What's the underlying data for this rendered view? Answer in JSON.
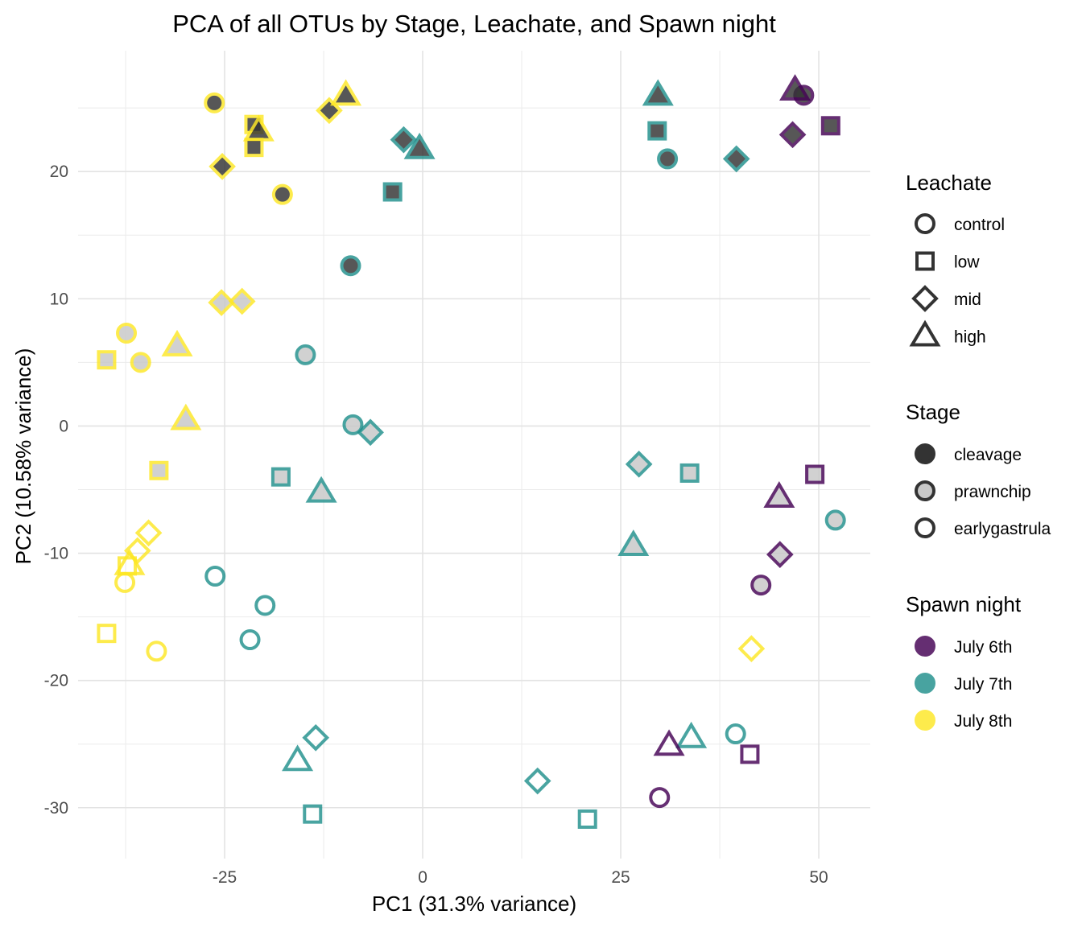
{
  "chart_data": {
    "type": "scatter",
    "title": "PCA of all OTUs by Stage, Leachate, and Spawn night",
    "xlabel": "PC1 (31.3% variance)",
    "ylabel": "PC2 (10.58% variance)",
    "xlim": [
      -43.5,
      56.5
    ],
    "ylim": [
      -34,
      29.5
    ],
    "x_ticks": [
      -25,
      0,
      25,
      50
    ],
    "x_tick_labels": [
      "-25",
      "0",
      "25",
      "50"
    ],
    "y_ticks": [
      -30,
      -20,
      -10,
      0,
      10,
      20
    ],
    "y_tick_labels": [
      "-30",
      "-20",
      "-10",
      "0",
      "10",
      "20"
    ],
    "grid": true,
    "legend_position": "right",
    "colors": {
      "July 6th": "#440154",
      "July 7th": "#21908C",
      "July 8th": "#FDE725"
    },
    "stage_fills": {
      "cleavage": "#333333",
      "prawnchip": "#C8C8C8",
      "earlygastrula": "none"
    },
    "legends": [
      {
        "title": "Leachate",
        "kind": "shape",
        "items": [
          {
            "label": "control",
            "value": "circle"
          },
          {
            "label": "low",
            "value": "square"
          },
          {
            "label": "mid",
            "value": "diamond"
          },
          {
            "label": "high",
            "value": "triangle"
          }
        ]
      },
      {
        "title": "Stage",
        "kind": "fill",
        "items": [
          {
            "label": "cleavage",
            "value": "cleavage"
          },
          {
            "label": "prawnchip",
            "value": "prawnchip"
          },
          {
            "label": "earlygastrula",
            "value": "earlygastrula"
          }
        ]
      },
      {
        "title": "Spawn night",
        "kind": "color",
        "items": [
          {
            "label": "July 6th",
            "value": "July 6th"
          },
          {
            "label": "July 7th",
            "value": "July 7th"
          },
          {
            "label": "July 8th",
            "value": "July 8th"
          }
        ]
      }
    ],
    "points": [
      {
        "x": 48.1,
        "y": 26.0,
        "leachate": "control",
        "stage": "cleavage",
        "night": "July 6th"
      },
      {
        "x": 47.0,
        "y": 26.4,
        "leachate": "high",
        "stage": "cleavage",
        "night": "July 6th"
      },
      {
        "x": 46.7,
        "y": 22.9,
        "leachate": "mid",
        "stage": "cleavage",
        "night": "July 6th"
      },
      {
        "x": 51.5,
        "y": 23.6,
        "leachate": "low",
        "stage": "cleavage",
        "night": "July 6th"
      },
      {
        "x": 29.7,
        "y": 26.0,
        "leachate": "high",
        "stage": "cleavage",
        "night": "July 7th"
      },
      {
        "x": 29.6,
        "y": 23.2,
        "leachate": "low",
        "stage": "cleavage",
        "night": "July 7th"
      },
      {
        "x": 30.9,
        "y": 21.0,
        "leachate": "control",
        "stage": "cleavage",
        "night": "July 7th"
      },
      {
        "x": 39.6,
        "y": 21.0,
        "leachate": "mid",
        "stage": "cleavage",
        "night": "July 7th"
      },
      {
        "x": -26.3,
        "y": 25.4,
        "leachate": "control",
        "stage": "cleavage",
        "night": "July 8th"
      },
      {
        "x": -21.3,
        "y": 23.7,
        "leachate": "low",
        "stage": "cleavage",
        "night": "July 8th"
      },
      {
        "x": -20.7,
        "y": 23.2,
        "leachate": "high",
        "stage": "cleavage",
        "night": "July 8th"
      },
      {
        "x": -21.3,
        "y": 21.9,
        "leachate": "low",
        "stage": "cleavage",
        "night": "July 8th"
      },
      {
        "x": -11.8,
        "y": 24.8,
        "leachate": "mid",
        "stage": "cleavage",
        "night": "July 8th"
      },
      {
        "x": -9.7,
        "y": 26.0,
        "leachate": "high",
        "stage": "cleavage",
        "night": "July 8th"
      },
      {
        "x": -25.3,
        "y": 20.4,
        "leachate": "mid",
        "stage": "cleavage",
        "night": "July 8th"
      },
      {
        "x": -17.7,
        "y": 18.2,
        "leachate": "control",
        "stage": "cleavage",
        "night": "July 8th"
      },
      {
        "x": -2.4,
        "y": 22.5,
        "leachate": "mid",
        "stage": "cleavage",
        "night": "July 7th"
      },
      {
        "x": -0.4,
        "y": 21.8,
        "leachate": "high",
        "stage": "cleavage",
        "night": "July 7th"
      },
      {
        "x": -3.8,
        "y": 18.4,
        "leachate": "low",
        "stage": "cleavage",
        "night": "July 7th"
      },
      {
        "x": -9.1,
        "y": 12.6,
        "leachate": "control",
        "stage": "cleavage",
        "night": "July 7th"
      },
      {
        "x": -25.4,
        "y": 9.7,
        "leachate": "mid",
        "stage": "prawnchip",
        "night": "July 8th"
      },
      {
        "x": -22.8,
        "y": 9.8,
        "leachate": "mid",
        "stage": "prawnchip",
        "night": "July 8th"
      },
      {
        "x": -37.4,
        "y": 7.3,
        "leachate": "control",
        "stage": "prawnchip",
        "night": "July 8th"
      },
      {
        "x": -39.9,
        "y": 5.2,
        "leachate": "low",
        "stage": "prawnchip",
        "night": "July 8th"
      },
      {
        "x": -35.6,
        "y": 5.0,
        "leachate": "control",
        "stage": "prawnchip",
        "night": "July 8th"
      },
      {
        "x": -31.0,
        "y": 6.3,
        "leachate": "high",
        "stage": "prawnchip",
        "night": "July 8th"
      },
      {
        "x": -29.9,
        "y": 0.5,
        "leachate": "high",
        "stage": "prawnchip",
        "night": "July 8th"
      },
      {
        "x": -33.3,
        "y": -3.5,
        "leachate": "low",
        "stage": "prawnchip",
        "night": "July 8th"
      },
      {
        "x": -14.8,
        "y": 5.6,
        "leachate": "control",
        "stage": "prawnchip",
        "night": "July 7th"
      },
      {
        "x": -8.8,
        "y": 0.1,
        "leachate": "control",
        "stage": "prawnchip",
        "night": "July 7th"
      },
      {
        "x": -6.6,
        "y": -0.5,
        "leachate": "mid",
        "stage": "prawnchip",
        "night": "July 7th"
      },
      {
        "x": -17.9,
        "y": -4.0,
        "leachate": "low",
        "stage": "prawnchip",
        "night": "July 7th"
      },
      {
        "x": -12.8,
        "y": -5.2,
        "leachate": "high",
        "stage": "prawnchip",
        "night": "July 7th"
      },
      {
        "x": 27.3,
        "y": -3.0,
        "leachate": "mid",
        "stage": "prawnchip",
        "night": "July 7th"
      },
      {
        "x": 33.7,
        "y": -3.7,
        "leachate": "low",
        "stage": "prawnchip",
        "night": "July 7th"
      },
      {
        "x": 26.6,
        "y": -9.4,
        "leachate": "high",
        "stage": "prawnchip",
        "night": "July 7th"
      },
      {
        "x": 52.1,
        "y": -7.4,
        "leachate": "control",
        "stage": "prawnchip",
        "night": "July 7th"
      },
      {
        "x": 49.5,
        "y": -3.8,
        "leachate": "low",
        "stage": "prawnchip",
        "night": "July 6th"
      },
      {
        "x": 45.0,
        "y": -5.6,
        "leachate": "high",
        "stage": "prawnchip",
        "night": "July 6th"
      },
      {
        "x": 45.1,
        "y": -10.1,
        "leachate": "mid",
        "stage": "prawnchip",
        "night": "July 6th"
      },
      {
        "x": 42.7,
        "y": -12.5,
        "leachate": "control",
        "stage": "prawnchip",
        "night": "July 6th"
      },
      {
        "x": -34.6,
        "y": -8.4,
        "leachate": "mid",
        "stage": "earlygastrula",
        "night": "July 8th"
      },
      {
        "x": -36.0,
        "y": -9.8,
        "leachate": "mid",
        "stage": "earlygastrula",
        "night": "July 8th"
      },
      {
        "x": -37.3,
        "y": -11.0,
        "leachate": "low",
        "stage": "earlygastrula",
        "night": "July 8th"
      },
      {
        "x": -37.0,
        "y": -10.9,
        "leachate": "high",
        "stage": "earlygastrula",
        "night": "July 8th"
      },
      {
        "x": -37.6,
        "y": -12.3,
        "leachate": "control",
        "stage": "earlygastrula",
        "night": "July 8th"
      },
      {
        "x": -39.9,
        "y": -16.3,
        "leachate": "low",
        "stage": "earlygastrula",
        "night": "July 8th"
      },
      {
        "x": -33.6,
        "y": -17.7,
        "leachate": "control",
        "stage": "earlygastrula",
        "night": "July 8th"
      },
      {
        "x": 41.5,
        "y": -17.5,
        "leachate": "mid",
        "stage": "earlygastrula",
        "night": "July 8th"
      },
      {
        "x": -26.2,
        "y": -11.8,
        "leachate": "control",
        "stage": "earlygastrula",
        "night": "July 7th"
      },
      {
        "x": -19.9,
        "y": -14.1,
        "leachate": "control",
        "stage": "earlygastrula",
        "night": "July 7th"
      },
      {
        "x": -21.8,
        "y": -16.8,
        "leachate": "control",
        "stage": "earlygastrula",
        "night": "July 7th"
      },
      {
        "x": -13.5,
        "y": -24.5,
        "leachate": "mid",
        "stage": "earlygastrula",
        "night": "July 7th"
      },
      {
        "x": -15.8,
        "y": -26.3,
        "leachate": "high",
        "stage": "earlygastrula",
        "night": "July 7th"
      },
      {
        "x": -13.9,
        "y": -30.5,
        "leachate": "low",
        "stage": "earlygastrula",
        "night": "July 7th"
      },
      {
        "x": 14.5,
        "y": -27.9,
        "leachate": "mid",
        "stage": "earlygastrula",
        "night": "July 7th"
      },
      {
        "x": 20.8,
        "y": -30.9,
        "leachate": "low",
        "stage": "earlygastrula",
        "night": "July 7th"
      },
      {
        "x": 33.9,
        "y": -24.5,
        "leachate": "high",
        "stage": "earlygastrula",
        "night": "July 7th"
      },
      {
        "x": 39.5,
        "y": -24.2,
        "leachate": "control",
        "stage": "earlygastrula",
        "night": "July 7th"
      },
      {
        "x": 31.1,
        "y": -25.1,
        "leachate": "high",
        "stage": "earlygastrula",
        "night": "July 6th"
      },
      {
        "x": 41.3,
        "y": -25.8,
        "leachate": "low",
        "stage": "earlygastrula",
        "night": "July 6th"
      },
      {
        "x": 29.9,
        "y": -29.2,
        "leachate": "control",
        "stage": "earlygastrula",
        "night": "July 6th"
      }
    ]
  }
}
